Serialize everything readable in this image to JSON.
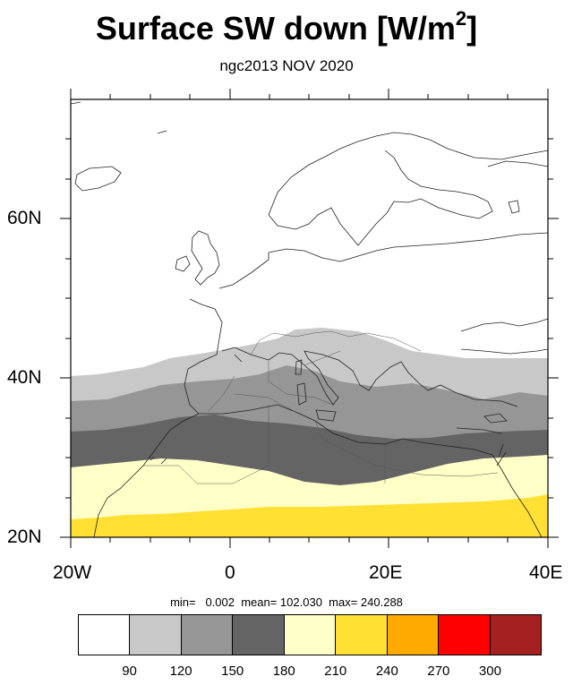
{
  "title_main": "Surface SW down [W/m",
  "title_sup": "2",
  "title_close": "]",
  "subtitle": "ngc2013 NOV 2020",
  "stats": "min=   0.002  mean= 102.030  max= 240.288",
  "map": {
    "lon_range": [
      -20,
      40
    ],
    "lat_range": [
      20,
      75
    ],
    "x_ticks": [
      "20W",
      "0",
      "20E",
      "40E"
    ],
    "y_ticks": [
      "20N",
      "40N",
      "60N"
    ]
  },
  "colorbar": {
    "colors": [
      "#ffffff",
      "#c8c8c8",
      "#969696",
      "#646464",
      "#ffffc8",
      "#ffe033",
      "#ffaa00",
      "#ff0000",
      "#a52020"
    ],
    "labels": [
      "90",
      "120",
      "150",
      "180",
      "210",
      "240",
      "270",
      "300"
    ]
  }
}
